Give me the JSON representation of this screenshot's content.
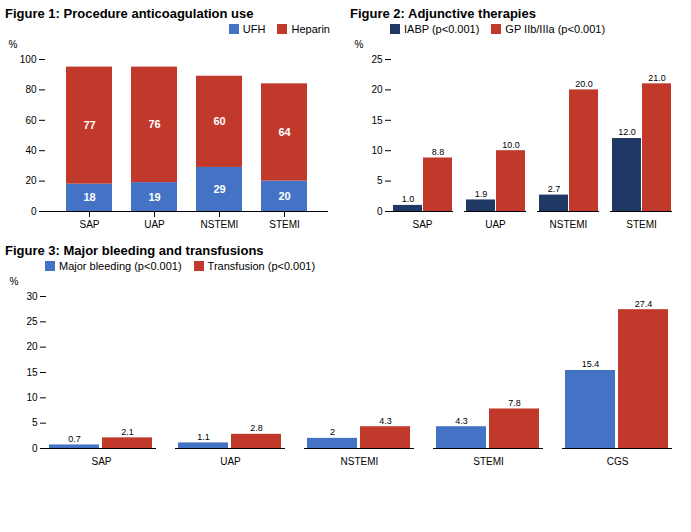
{
  "chart_data": [
    {
      "type": "bar",
      "title": "Figure 1: Procedure anticoagulation use",
      "categories": [
        "SAP",
        "UAP",
        "NSTEMI",
        "STEMI"
      ],
      "stacked": true,
      "series": [
        {
          "name": "UFH",
          "color": "#4472c4",
          "values": [
            18,
            19,
            29,
            20
          ]
        },
        {
          "name": "Heparin",
          "color": "#c0392b",
          "values": [
            77,
            76,
            60,
            64
          ]
        }
      ],
      "ylabel": "%",
      "ylim": [
        0,
        100
      ],
      "yticks": [
        0,
        20,
        40,
        60,
        80,
        100
      ],
      "legend": "upper right",
      "data_labels": true
    },
    {
      "type": "bar",
      "title": "Figure 2: Adjunctive therapies",
      "categories": [
        "SAP",
        "UAP",
        "NSTEMI",
        "STEMI"
      ],
      "series": [
        {
          "name": "IABP (p<0.001)",
          "color": "#1f3864",
          "values": [
            1.0,
            1.9,
            2.7,
            12.0
          ],
          "value_labels": [
            "1.0",
            "1.9",
            "2.7",
            "12.0"
          ]
        },
        {
          "name": "GP IIb/IIIa (p<0.001)",
          "color": "#c0392b",
          "values": [
            8.8,
            10.0,
            20.0,
            21.0
          ],
          "value_labels": [
            "8.8",
            "10.0",
            "20.0",
            "21.0"
          ]
        }
      ],
      "ylabel": "%",
      "ylim": [
        0,
        25
      ],
      "yticks": [
        0,
        5,
        10,
        15,
        20,
        25
      ],
      "legend": "upper left",
      "data_labels": true
    },
    {
      "type": "bar",
      "title": "Figure 3: Major bleeding and transfusions",
      "categories": [
        "SAP",
        "UAP",
        "NSTEMI",
        "STEMI",
        "CGS"
      ],
      "series": [
        {
          "name": "Major bleeding (p<0.001)",
          "color": "#4472c4",
          "values": [
            0.7,
            1.1,
            2.0,
            4.3,
            15.4
          ]
        },
        {
          "name": "Transfusion (p<0.001)",
          "color": "#c0392b",
          "values": [
            2.1,
            2.8,
            4.3,
            7.8,
            27.4
          ]
        }
      ],
      "ylabel": "%",
      "ylim": [
        0,
        30
      ],
      "yticks": [
        0,
        5,
        10,
        15,
        20,
        25,
        30
      ],
      "legend": "upper left",
      "data_labels": true
    }
  ]
}
